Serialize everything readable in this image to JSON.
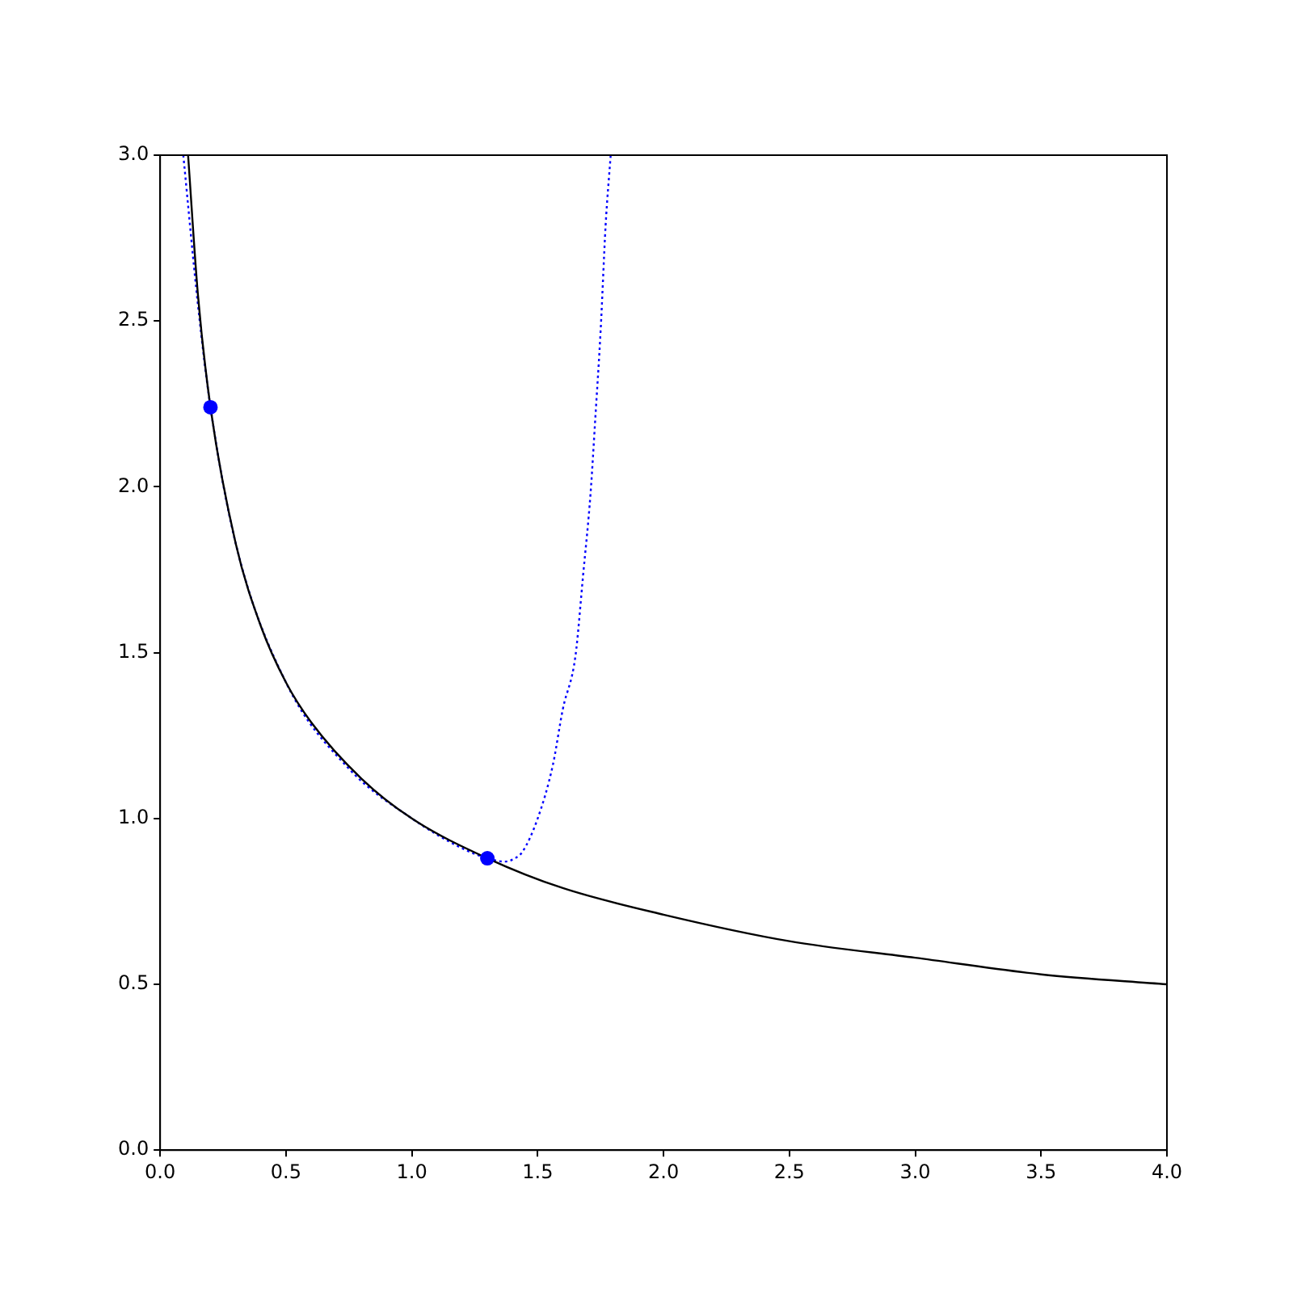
{
  "chart_data": {
    "type": "line",
    "xlim": [
      0,
      4
    ],
    "ylim": [
      0,
      3
    ],
    "xticks": [
      {
        "value": 0,
        "label": "0.0"
      },
      {
        "value": 0.5,
        "label": "0.5"
      },
      {
        "value": 1,
        "label": "1.0"
      },
      {
        "value": 1.5,
        "label": "1.5"
      },
      {
        "value": 2,
        "label": "2.0"
      },
      {
        "value": 2.5,
        "label": "2.5"
      },
      {
        "value": 3,
        "label": "3.0"
      },
      {
        "value": 3.5,
        "label": "3.5"
      },
      {
        "value": 4,
        "label": "4.0"
      }
    ],
    "yticks": [
      {
        "value": 0,
        "label": "0.0"
      },
      {
        "value": 0.5,
        "label": "0.5"
      },
      {
        "value": 1,
        "label": "1.0"
      },
      {
        "value": 1.5,
        "label": "1.5"
      },
      {
        "value": 2,
        "label": "2.0"
      },
      {
        "value": 2.5,
        "label": "2.5"
      },
      {
        "value": 3,
        "label": "3.0"
      }
    ],
    "grid": false,
    "legend": false,
    "series": [
      {
        "color": "#000000",
        "line_style": "solid",
        "marker": "none",
        "x": [
          0.111,
          0.15,
          0.2,
          0.3,
          0.4,
          0.5,
          0.6,
          0.8,
          1.0,
          1.3,
          1.6,
          2.0,
          2.5,
          3.0,
          3.5,
          4.0
        ],
        "values": [
          3.0,
          2.58,
          2.24,
          1.83,
          1.58,
          1.41,
          1.29,
          1.12,
          1.0,
          0.88,
          0.79,
          0.71,
          0.63,
          0.58,
          0.53,
          0.5
        ]
      },
      {
        "color": "#0000ff",
        "line_style": "dotted",
        "marker": "none",
        "x": [
          0.092,
          0.15,
          0.2,
          0.3,
          0.5,
          0.75,
          1.0,
          1.2,
          1.3,
          1.37,
          1.41,
          1.44,
          1.5,
          1.56,
          1.6,
          1.65,
          1.68,
          1.71,
          1.73,
          1.75,
          1.77,
          1.79
        ],
        "values": [
          3.0,
          2.55,
          2.24,
          1.83,
          1.41,
          1.15,
          1.0,
          0.91,
          0.88,
          0.87,
          0.88,
          0.9,
          1.0,
          1.16,
          1.33,
          1.49,
          1.73,
          1.98,
          2.22,
          2.47,
          2.79,
          3.0
        ]
      },
      {
        "type": "scatter",
        "color": "#0000ff",
        "marker": "circle",
        "x": [
          0.2,
          1.3
        ],
        "values": [
          2.24,
          0.88
        ]
      }
    ]
  }
}
